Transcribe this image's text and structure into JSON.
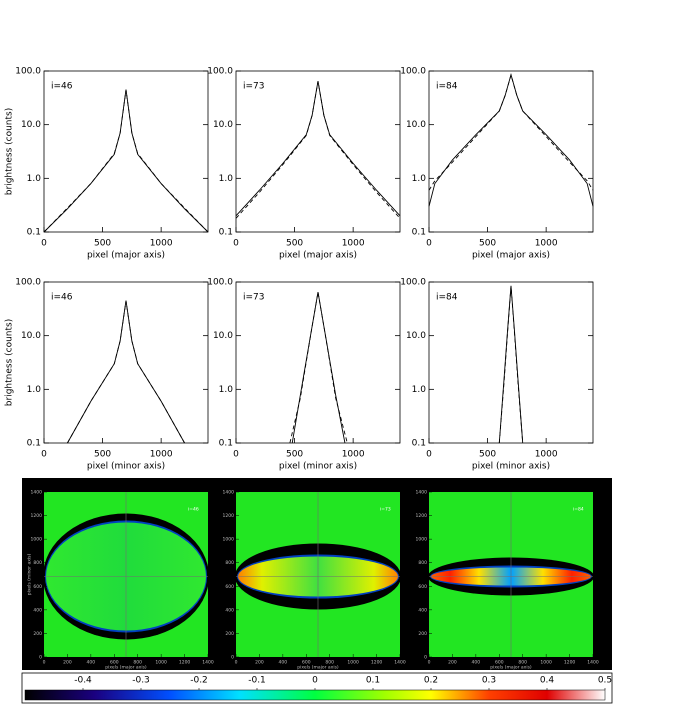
{
  "chart_data": [
    {
      "type": "line",
      "annotation": "i=46",
      "xlabel": "pixel (major axis)",
      "ylabel": "brightness (counts)",
      "yscale": "log",
      "xlim": [
        0,
        1400
      ],
      "xticks": [
        0,
        500,
        1000
      ],
      "ylim": [
        0.1,
        100
      ],
      "yticks": [
        0.1,
        {
          "value": 1,
          "label": "1.0"
        },
        {
          "value": 10,
          "label": "10.0"
        },
        {
          "value": 100,
          "label": "100.0"
        }
      ],
      "series": [
        {
          "style": "solid",
          "color": "#000000",
          "x": [
            0,
            200,
            400,
            600,
            650,
            700,
            750,
            800,
            1000,
            1200,
            1400
          ],
          "values": [
            0.1,
            0.27,
            0.8,
            2.8,
            7,
            45,
            7,
            2.8,
            0.8,
            0.27,
            0.1
          ]
        },
        {
          "style": "dashed",
          "color": "#000000",
          "x": [
            0,
            200,
            400,
            600,
            650,
            700,
            750,
            800,
            1000,
            1200,
            1400
          ],
          "values": [
            0.1,
            0.28,
            0.8,
            2.9,
            7,
            44,
            7,
            2.9,
            0.8,
            0.28,
            0.1
          ]
        }
      ]
    },
    {
      "type": "line",
      "annotation": "i=73",
      "xlabel": "pixel (major axis)",
      "yscale": "log",
      "xlim": [
        0,
        1400
      ],
      "xticks": [
        0,
        500,
        1000
      ],
      "ylim": [
        0.1,
        100
      ],
      "yticks": [
        0.1,
        {
          "value": 1,
          "label": "1.0"
        },
        {
          "value": 10,
          "label": "10.0"
        },
        {
          "value": 100,
          "label": "100.0"
        }
      ],
      "series": [
        {
          "style": "solid",
          "color": "#000000",
          "x": [
            0,
            200,
            400,
            600,
            650,
            700,
            750,
            800,
            1000,
            1200,
            1400
          ],
          "values": [
            0.2,
            0.6,
            1.9,
            6.5,
            15,
            65,
            15,
            6.5,
            1.9,
            0.6,
            0.2
          ]
        },
        {
          "style": "dashed",
          "color": "#000000",
          "x": [
            0,
            200,
            400,
            600,
            650,
            700,
            750,
            800,
            1000,
            1200,
            1400
          ],
          "values": [
            0.18,
            0.55,
            1.8,
            6.3,
            15,
            64,
            15,
            6.3,
            1.8,
            0.55,
            0.18
          ]
        }
      ]
    },
    {
      "type": "line",
      "annotation": "i=84",
      "xlabel": "pixel (major axis)",
      "yscale": "log",
      "xlim": [
        0,
        1400
      ],
      "xticks": [
        0,
        500,
        1000
      ],
      "ylim": [
        0.1,
        100
      ],
      "yticks": [
        0.1,
        {
          "value": 1,
          "label": "1.0"
        },
        {
          "value": 10,
          "label": "10.0"
        },
        {
          "value": 100,
          "label": "100.0"
        }
      ],
      "series": [
        {
          "style": "solid",
          "color": "#000000",
          "x": [
            0,
            50,
            200,
            400,
            600,
            650,
            700,
            750,
            800,
            1000,
            1200,
            1350,
            1400
          ],
          "values": [
            0.3,
            0.8,
            2.2,
            6.5,
            18,
            35,
            85,
            35,
            18,
            6.5,
            2.2,
            0.8,
            0.3
          ]
        },
        {
          "style": "dashed",
          "color": "#000000",
          "x": [
            0,
            50,
            200,
            400,
            600,
            650,
            700,
            750,
            800,
            1000,
            1200,
            1350,
            1400
          ],
          "values": [
            0.6,
            0.9,
            2.0,
            6.0,
            18,
            35,
            84,
            35,
            18,
            6.0,
            2.0,
            0.9,
            0.6
          ]
        }
      ]
    },
    {
      "type": "line",
      "annotation": "i=46",
      "xlabel": "pixel (minor axis)",
      "ylabel": "brightness (counts)",
      "yscale": "log",
      "xlim": [
        0,
        1400
      ],
      "xticks": [
        0,
        500,
        1000
      ],
      "ylim": [
        0.1,
        100
      ],
      "yticks": [
        0.1,
        {
          "value": 1,
          "label": "1.0"
        },
        {
          "value": 10,
          "label": "10.0"
        },
        {
          "value": 100,
          "label": "100.0"
        }
      ],
      "series": [
        {
          "style": "solid",
          "color": "#000000",
          "x": [
            200,
            400,
            600,
            650,
            700,
            750,
            800,
            1000,
            1200
          ],
          "values": [
            0.1,
            0.6,
            3,
            8,
            45,
            8,
            3,
            0.6,
            0.1
          ]
        },
        {
          "style": "dashed",
          "color": "#000000",
          "x": [
            200,
            400,
            600,
            650,
            700,
            750,
            800,
            1000,
            1200
          ],
          "values": [
            0.1,
            0.6,
            3,
            8,
            44,
            8,
            3,
            0.6,
            0.1
          ]
        }
      ]
    },
    {
      "type": "line",
      "annotation": "i=73",
      "xlabel": "pixel (minor axis)",
      "yscale": "log",
      "xlim": [
        0,
        1400
      ],
      "xticks": [
        0,
        500,
        1000
      ],
      "ylim": [
        0.1,
        100
      ],
      "yticks": [
        0.1,
        {
          "value": 1,
          "label": "1.0"
        },
        {
          "value": 10,
          "label": "10.0"
        },
        {
          "value": 100,
          "label": "100.0"
        }
      ],
      "series": [
        {
          "style": "solid",
          "color": "#000000",
          "x": [
            480,
            550,
            600,
            650,
            700,
            750,
            800,
            850,
            930
          ],
          "values": [
            0.1,
            0.8,
            3.5,
            15,
            65,
            15,
            3.5,
            0.8,
            0.1
          ]
        },
        {
          "style": "dashed",
          "color": "#000000",
          "x": [
            460,
            550,
            600,
            650,
            700,
            750,
            800,
            850,
            950
          ],
          "values": [
            0.1,
            0.7,
            3.3,
            15,
            64,
            15,
            3.3,
            0.7,
            0.1
          ]
        }
      ]
    },
    {
      "type": "line",
      "annotation": "i=84",
      "xlabel": "pixel (minor axis)",
      "yscale": "log",
      "xlim": [
        0,
        1400
      ],
      "xticks": [
        0,
        500,
        1000
      ],
      "ylim": [
        0.1,
        100
      ],
      "yticks": [
        0.1,
        {
          "value": 1,
          "label": "1.0"
        },
        {
          "value": 10,
          "label": "10.0"
        },
        {
          "value": 100,
          "label": "100.0"
        }
      ],
      "series": [
        {
          "style": "solid",
          "color": "#000000",
          "x": [
            600,
            640,
            670,
            700,
            730,
            760,
            800
          ],
          "values": [
            0.1,
            1.5,
            12,
            85,
            12,
            1.5,
            0.1
          ]
        },
        {
          "style": "dashed",
          "color": "#000000",
          "x": [
            600,
            640,
            670,
            700,
            730,
            760,
            800
          ],
          "values": [
            0.1,
            1.3,
            11,
            84,
            11,
            1.3,
            0.1
          ]
        }
      ]
    },
    {
      "type": "image",
      "annotation": "i=46",
      "xlabel": "pixels (major axis)",
      "ylabel": "pixels (minor axis)",
      "xlim": [
        0,
        1400
      ],
      "ylim": [
        0,
        1400
      ],
      "xticks": [
        0,
        200,
        400,
        600,
        800,
        1000,
        1200,
        1400
      ],
      "yticks": [
        0,
        200,
        400,
        600,
        800,
        1000,
        1200,
        1400
      ]
    },
    {
      "type": "image",
      "annotation": "i=73",
      "xlabel": "pixels (major axis)",
      "xlim": [
        0,
        1400
      ],
      "ylim": [
        0,
        1400
      ],
      "xticks": [
        0,
        200,
        400,
        600,
        800,
        1000,
        1200,
        1400
      ],
      "yticks": [
        0,
        200,
        400,
        600,
        800,
        1000,
        1200,
        1400
      ]
    },
    {
      "type": "image",
      "annotation": "i=84",
      "xlabel": "pixels (major axis)",
      "xlim": [
        0,
        1400
      ],
      "ylim": [
        0,
        1400
      ],
      "xticks": [
        0,
        200,
        400,
        600,
        800,
        1000,
        1200,
        1400
      ],
      "yticks": [
        0,
        200,
        400,
        600,
        800,
        1000,
        1200,
        1400
      ]
    },
    {
      "type": "colorbar",
      "clim": [
        -0.5,
        0.5
      ],
      "ticks": [
        -0.4,
        -0.3,
        -0.2,
        -0.1,
        0,
        0.1,
        0.2,
        0.3,
        0.4,
        0.5
      ]
    }
  ]
}
